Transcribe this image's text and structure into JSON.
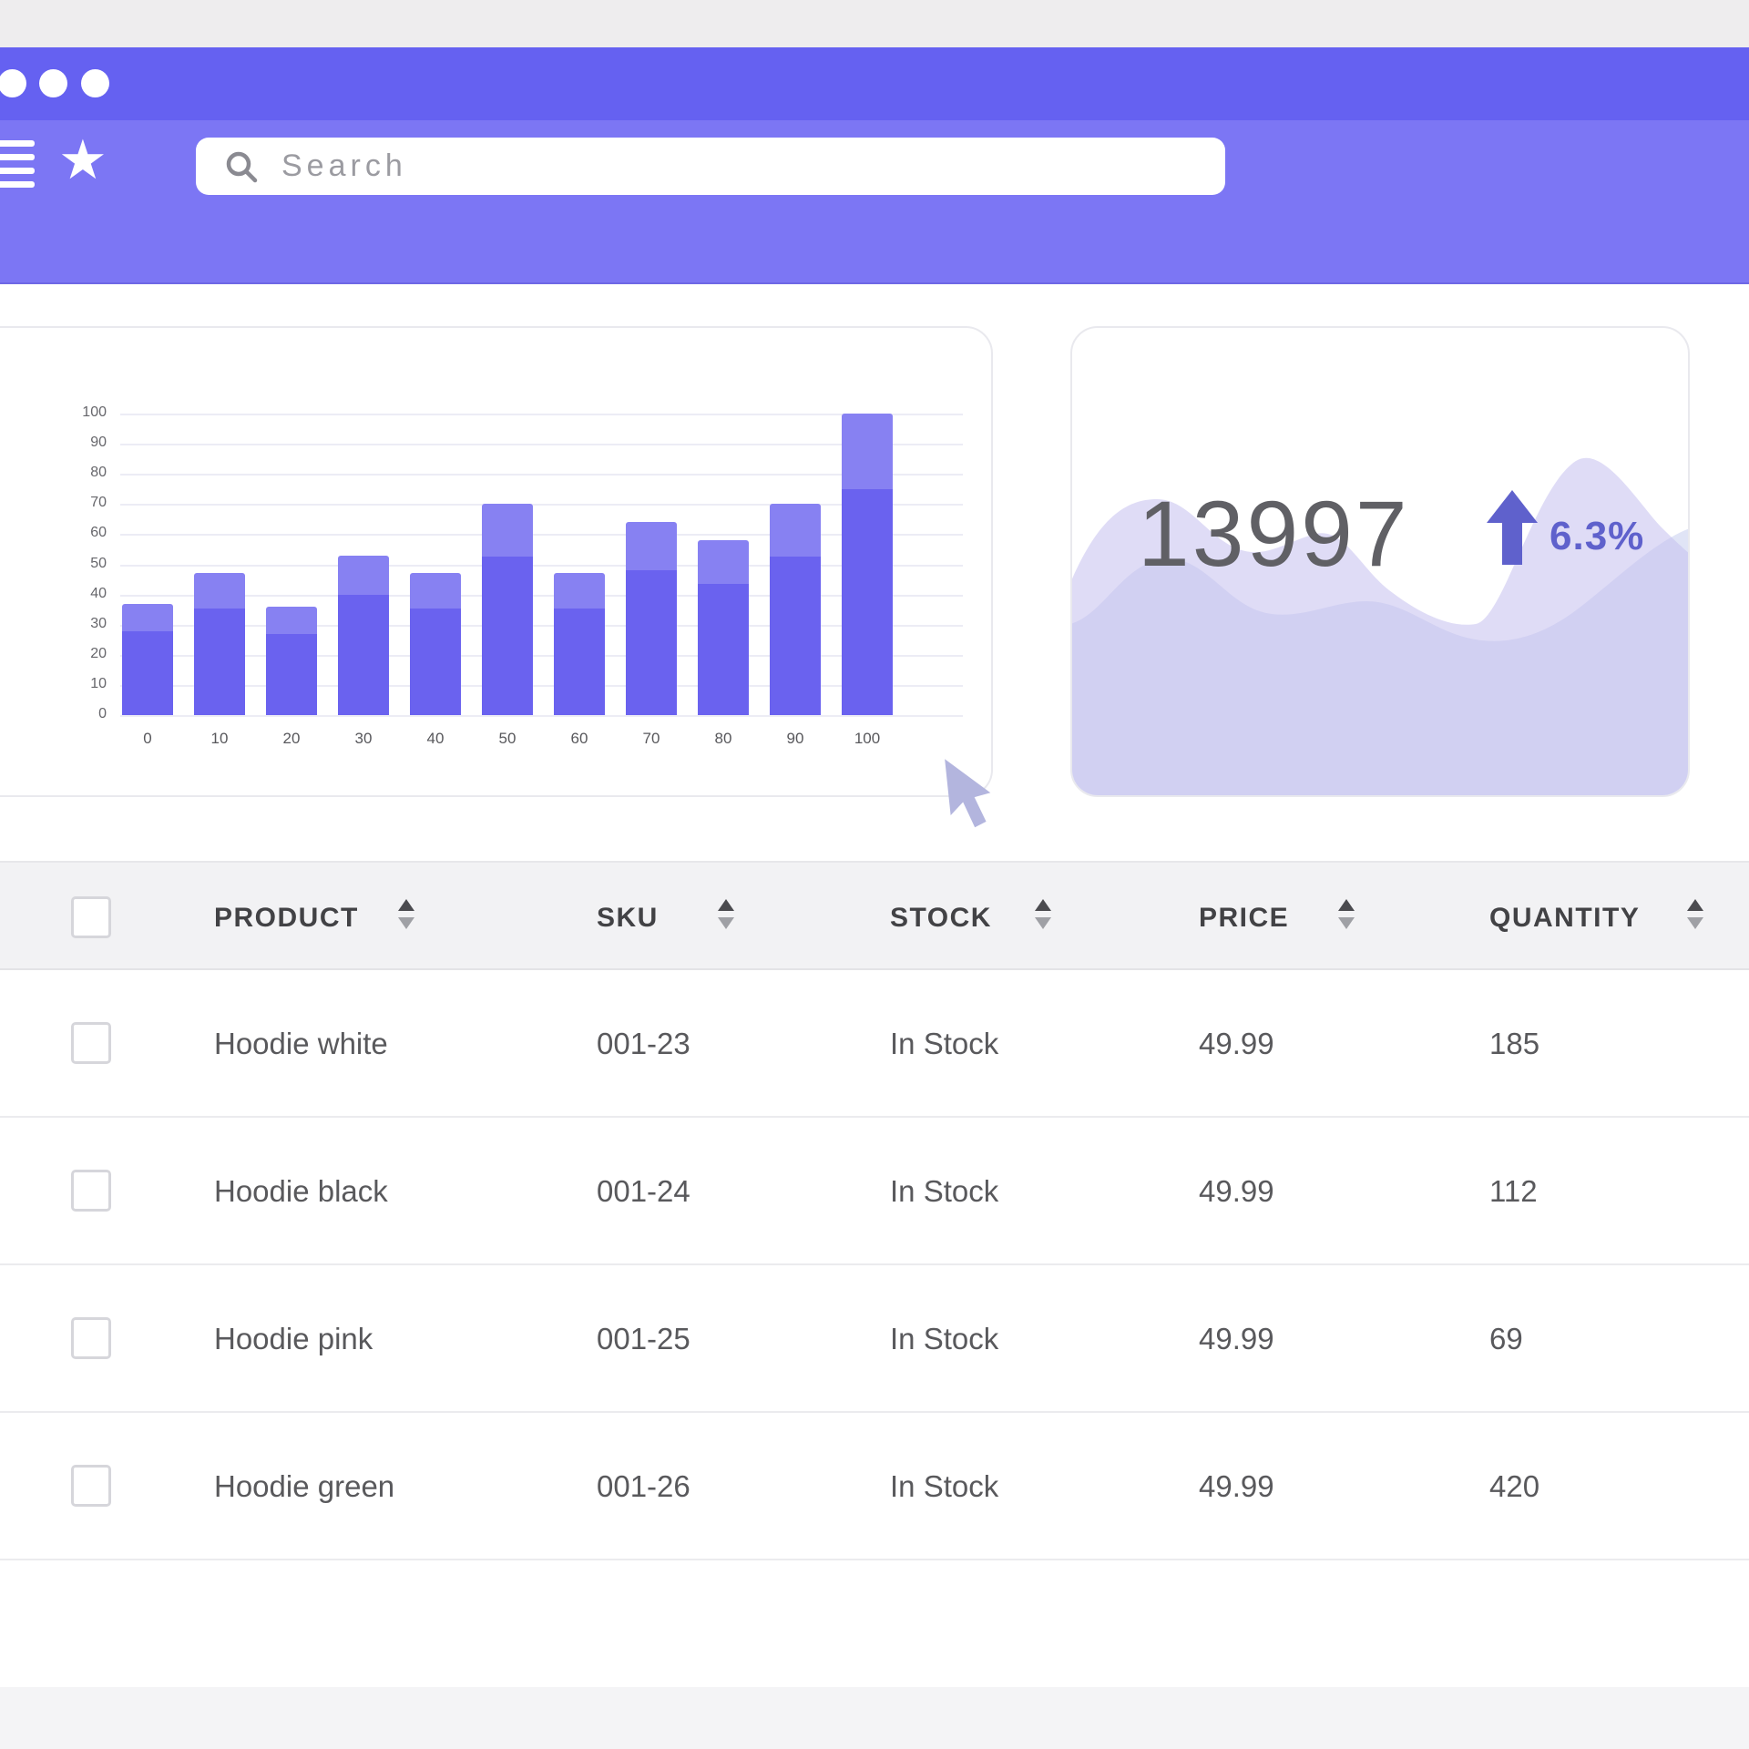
{
  "window": {
    "controls": [
      "close",
      "minimize",
      "maximize"
    ],
    "toolbar": {
      "menu_icon": "hamburger-menu",
      "bookmark_icon": "star",
      "search_placeholder": "Search"
    }
  },
  "colors": {
    "titlebar": "#6561f1",
    "toolbar": "#7c76f4",
    "accent": "#6a62ef",
    "trend": "#5f61cc",
    "grid": "#ececf5",
    "header_bg": "#f2f2f4",
    "footer_bg": "#f4f4f6",
    "wave_front": "#c4bfee",
    "wave_back": "#ccd2f0",
    "cursor": "#b3b5de"
  },
  "chart_data": [
    {
      "type": "bar",
      "title": "",
      "xlabel": "",
      "ylabel": "",
      "categories": [
        "0",
        "10",
        "20",
        "30",
        "40",
        "50",
        "60",
        "70",
        "80",
        "90",
        "100"
      ],
      "values": [
        37,
        47,
        36,
        53,
        47,
        70,
        47,
        64,
        58,
        70,
        100
      ],
      "ylim": [
        0,
        100
      ],
      "yticks": [
        0,
        10,
        20,
        30,
        40,
        50,
        60,
        70,
        80,
        90,
        100
      ],
      "grid": true,
      "legend": false,
      "bar_color": "#6a62ef",
      "bar_top_highlight_fraction": 0.25
    },
    {
      "type": "area",
      "title": "stat-card-sparkline",
      "axes": false,
      "legend": false,
      "series": [
        {
          "name": "back",
          "values": [
            0.45,
            0.55,
            0.62,
            0.5,
            0.47,
            0.52,
            0.44,
            0.42,
            0.5,
            0.62,
            0.72,
            0.75
          ]
        },
        {
          "name": "front",
          "values": [
            0.4,
            0.62,
            0.68,
            0.55,
            0.6,
            0.5,
            0.38,
            0.33,
            0.42,
            0.72,
            0.92,
            0.68
          ]
        }
      ]
    }
  ],
  "stat_card": {
    "value": "13997",
    "trend": "up",
    "change": "6.3%"
  },
  "table": {
    "select_all_checked": false,
    "columns": [
      "PRODUCT",
      "SKU",
      "STOCK",
      "PRICE",
      "QUANTITY"
    ],
    "column_keys": [
      "product",
      "sku",
      "stock",
      "price",
      "quantity"
    ],
    "rows": [
      {
        "selected": false,
        "cells": [
          "Hoodie white",
          "001-23",
          "In Stock",
          "49.99",
          "185"
        ]
      },
      {
        "selected": false,
        "cells": [
          "Hoodie black",
          "001-24",
          "In Stock",
          "49.99",
          "112"
        ]
      },
      {
        "selected": false,
        "cells": [
          "Hoodie pink",
          "001-25",
          "In Stock",
          "49.99",
          "69"
        ]
      },
      {
        "selected": false,
        "cells": [
          "Hoodie green",
          "001-26",
          "In Stock",
          "49.99",
          "420"
        ]
      }
    ]
  }
}
